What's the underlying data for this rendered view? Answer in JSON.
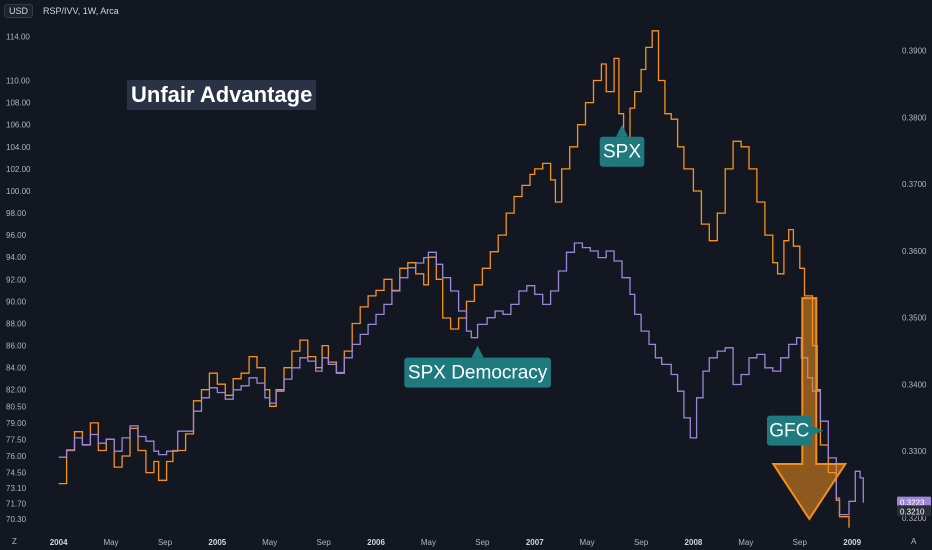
{
  "header": {
    "currency": "USD",
    "symbol": "RSP/IVV, 1W, Arca"
  },
  "title": "Unfair Advantage",
  "colors": {
    "background": "#131722",
    "spx": "#f7931a",
    "democracy": "#9d86d8",
    "badge": "#1f7a7e",
    "arrow": "#f28f1c"
  },
  "corner_left": "Z",
  "corner_right": "A",
  "chart_data": {
    "type": "line",
    "x_ticks": [
      {
        "label": "2004",
        "t": 2004.0,
        "year": true
      },
      {
        "label": "May",
        "t": 2004.33,
        "year": false
      },
      {
        "label": "Sep",
        "t": 2004.67,
        "year": false
      },
      {
        "label": "2005",
        "t": 2005.0,
        "year": true
      },
      {
        "label": "May",
        "t": 2005.33,
        "year": false
      },
      {
        "label": "Sep",
        "t": 2005.67,
        "year": false
      },
      {
        "label": "2006",
        "t": 2006.0,
        "year": true
      },
      {
        "label": "May",
        "t": 2006.33,
        "year": false
      },
      {
        "label": "Sep",
        "t": 2006.67,
        "year": false
      },
      {
        "label": "2007",
        "t": 2007.0,
        "year": true
      },
      {
        "label": "May",
        "t": 2007.33,
        "year": false
      },
      {
        "label": "Sep",
        "t": 2007.67,
        "year": false
      },
      {
        "label": "2008",
        "t": 2008.0,
        "year": true
      },
      {
        "label": "May",
        "t": 2008.33,
        "year": false
      },
      {
        "label": "Sep",
        "t": 2008.67,
        "year": false
      },
      {
        "label": "2009",
        "t": 2009.0,
        "year": true
      }
    ],
    "x_range": [
      2003.87,
      2009.27
    ],
    "left_axis": {
      "ticks": [
        "114.00",
        "110.00",
        "108.00",
        "106.00",
        "104.00",
        "102.00",
        "100.00",
        "98.00",
        "96.00",
        "94.00",
        "92.00",
        "90.00",
        "88.00",
        "86.00",
        "84.00",
        "82.00",
        "80.50",
        "79.00",
        "77.50",
        "76.00",
        "74.50",
        "73.10",
        "71.70",
        "70.30"
      ],
      "range": [
        69.3,
        115.3
      ]
    },
    "right_axis": {
      "ticks": [
        "0.3900",
        "0.3800",
        "0.3700",
        "0.3600",
        "0.3500",
        "0.3400",
        "0.3300",
        "0.3200"
      ],
      "range": [
        0.3182,
        0.3943
      ],
      "last_values": [
        {
          "label": "0.3223",
          "value": 0.3223,
          "series": "democracy"
        },
        {
          "label": "0.3210",
          "value": 0.321,
          "series": "neutral"
        }
      ]
    },
    "series": [
      {
        "name": "SPX",
        "axis": "left",
        "points": [
          [
            2004.0,
            73.5
          ],
          [
            2004.05,
            76.5
          ],
          [
            2004.1,
            78.2
          ],
          [
            2004.15,
            77.0
          ],
          [
            2004.2,
            79.0
          ],
          [
            2004.25,
            76.5
          ],
          [
            2004.3,
            77.5
          ],
          [
            2004.35,
            75.0
          ],
          [
            2004.4,
            76.0
          ],
          [
            2004.45,
            78.5
          ],
          [
            2004.5,
            76.5
          ],
          [
            2004.55,
            74.5
          ],
          [
            2004.6,
            75.5
          ],
          [
            2004.63,
            73.8
          ],
          [
            2004.68,
            75.5
          ],
          [
            2004.72,
            76.5
          ],
          [
            2004.8,
            78.0
          ],
          [
            2004.85,
            81.0
          ],
          [
            2004.9,
            82.0
          ],
          [
            2004.95,
            83.5
          ],
          [
            2005.0,
            82.5
          ],
          [
            2005.05,
            81.5
          ],
          [
            2005.1,
            83.0
          ],
          [
            2005.15,
            83.5
          ],
          [
            2005.2,
            85.0
          ],
          [
            2005.25,
            84.0
          ],
          [
            2005.3,
            82.0
          ],
          [
            2005.33,
            80.5
          ],
          [
            2005.37,
            82.0
          ],
          [
            2005.42,
            84.0
          ],
          [
            2005.47,
            85.5
          ],
          [
            2005.52,
            86.5
          ],
          [
            2005.57,
            85.0
          ],
          [
            2005.62,
            84.0
          ],
          [
            2005.66,
            86.0
          ],
          [
            2005.7,
            84.5
          ],
          [
            2005.75,
            83.5
          ],
          [
            2005.8,
            85.5
          ],
          [
            2005.85,
            88.0
          ],
          [
            2005.9,
            89.5
          ],
          [
            2005.95,
            90.5
          ],
          [
            2006.0,
            91.0
          ],
          [
            2006.05,
            92.0
          ],
          [
            2006.1,
            91.0
          ],
          [
            2006.15,
            93.0
          ],
          [
            2006.2,
            93.5
          ],
          [
            2006.25,
            92.5
          ],
          [
            2006.3,
            91.5
          ],
          [
            2006.33,
            94.0
          ],
          [
            2006.38,
            92.0
          ],
          [
            2006.42,
            88.5
          ],
          [
            2006.47,
            87.5
          ],
          [
            2006.52,
            88.5
          ],
          [
            2006.57,
            90.0
          ],
          [
            2006.62,
            91.5
          ],
          [
            2006.67,
            93.0
          ],
          [
            2006.72,
            94.5
          ],
          [
            2006.77,
            96.0
          ],
          [
            2006.82,
            98.0
          ],
          [
            2006.87,
            99.5
          ],
          [
            2006.92,
            100.5
          ],
          [
            2006.97,
            101.5
          ],
          [
            2007.0,
            102.0
          ],
          [
            2007.05,
            102.5
          ],
          [
            2007.1,
            101.0
          ],
          [
            2007.13,
            99.0
          ],
          [
            2007.17,
            102.0
          ],
          [
            2007.22,
            104.0
          ],
          [
            2007.27,
            106.0
          ],
          [
            2007.32,
            108.0
          ],
          [
            2007.37,
            110.0
          ],
          [
            2007.42,
            111.5
          ],
          [
            2007.45,
            109.0
          ],
          [
            2007.5,
            112.0
          ],
          [
            2007.53,
            107.0
          ],
          [
            2007.56,
            104.5
          ],
          [
            2007.6,
            107.5
          ],
          [
            2007.63,
            109.0
          ],
          [
            2007.67,
            111.0
          ],
          [
            2007.7,
            113.0
          ],
          [
            2007.74,
            114.5
          ],
          [
            2007.78,
            110.0
          ],
          [
            2007.82,
            107.0
          ],
          [
            2007.86,
            106.5
          ],
          [
            2007.9,
            104.0
          ],
          [
            2007.94,
            102.0
          ],
          [
            2008.0,
            100.0
          ],
          [
            2008.05,
            97.0
          ],
          [
            2008.1,
            95.5
          ],
          [
            2008.15,
            98.0
          ],
          [
            2008.2,
            102.0
          ],
          [
            2008.25,
            104.5
          ],
          [
            2008.3,
            104.0
          ],
          [
            2008.35,
            102.0
          ],
          [
            2008.4,
            99.0
          ],
          [
            2008.45,
            96.0
          ],
          [
            2008.5,
            93.5
          ],
          [
            2008.53,
            92.5
          ],
          [
            2008.57,
            95.5
          ],
          [
            2008.6,
            96.5
          ],
          [
            2008.63,
            95.0
          ],
          [
            2008.67,
            93.0
          ],
          [
            2008.7,
            90.5
          ],
          [
            2008.75,
            86.0
          ],
          [
            2008.78,
            82.0
          ],
          [
            2008.8,
            77.0
          ],
          [
            2008.85,
            74.5
          ],
          [
            2008.9,
            72.0
          ],
          [
            2008.92,
            70.5
          ],
          [
            2008.98,
            69.5
          ]
        ]
      },
      {
        "name": "SPX Democracy",
        "axis": "right",
        "points": [
          [
            2004.0,
            0.3291
          ],
          [
            2004.05,
            0.3302
          ],
          [
            2004.1,
            0.332
          ],
          [
            2004.15,
            0.331
          ],
          [
            2004.2,
            0.3325
          ],
          [
            2004.25,
            0.3312
          ],
          [
            2004.3,
            0.3318
          ],
          [
            2004.35,
            0.33
          ],
          [
            2004.4,
            0.332
          ],
          [
            2004.45,
            0.3338
          ],
          [
            2004.5,
            0.3322
          ],
          [
            2004.55,
            0.3315
          ],
          [
            2004.6,
            0.33
          ],
          [
            2004.63,
            0.3295
          ],
          [
            2004.68,
            0.33
          ],
          [
            2004.75,
            0.333
          ],
          [
            2004.85,
            0.336
          ],
          [
            2004.9,
            0.338
          ],
          [
            2004.95,
            0.3395
          ],
          [
            2005.0,
            0.3388
          ],
          [
            2005.05,
            0.3378
          ],
          [
            2005.1,
            0.3392
          ],
          [
            2005.15,
            0.3398
          ],
          [
            2005.2,
            0.341
          ],
          [
            2005.25,
            0.3402
          ],
          [
            2005.3,
            0.338
          ],
          [
            2005.33,
            0.3372
          ],
          [
            2005.37,
            0.339
          ],
          [
            2005.42,
            0.3408
          ],
          [
            2005.47,
            0.3425
          ],
          [
            2005.52,
            0.344
          ],
          [
            2005.57,
            0.3435
          ],
          [
            2005.62,
            0.342
          ],
          [
            2005.66,
            0.344
          ],
          [
            2005.7,
            0.343
          ],
          [
            2005.75,
            0.3418
          ],
          [
            2005.8,
            0.344
          ],
          [
            2005.85,
            0.346
          ],
          [
            2005.9,
            0.3475
          ],
          [
            2005.95,
            0.349
          ],
          [
            2006.0,
            0.3505
          ],
          [
            2006.05,
            0.352
          ],
          [
            2006.1,
            0.354
          ],
          [
            2006.15,
            0.356
          ],
          [
            2006.2,
            0.3575
          ],
          [
            2006.25,
            0.3582
          ],
          [
            2006.3,
            0.359
          ],
          [
            2006.33,
            0.3598
          ],
          [
            2006.38,
            0.358
          ],
          [
            2006.42,
            0.356
          ],
          [
            2006.47,
            0.354
          ],
          [
            2006.52,
            0.351
          ],
          [
            2006.57,
            0.348
          ],
          [
            2006.6,
            0.347
          ],
          [
            2006.64,
            0.349
          ],
          [
            2006.7,
            0.35
          ],
          [
            2006.75,
            0.351
          ],
          [
            2006.8,
            0.3505
          ],
          [
            2006.85,
            0.352
          ],
          [
            2006.9,
            0.354
          ],
          [
            2006.95,
            0.3548
          ],
          [
            2007.0,
            0.3535
          ],
          [
            2007.05,
            0.352
          ],
          [
            2007.1,
            0.354
          ],
          [
            2007.15,
            0.357
          ],
          [
            2007.2,
            0.3598
          ],
          [
            2007.25,
            0.3612
          ],
          [
            2007.3,
            0.3605
          ],
          [
            2007.35,
            0.36
          ],
          [
            2007.4,
            0.359
          ],
          [
            2007.45,
            0.36
          ],
          [
            2007.5,
            0.3585
          ],
          [
            2007.55,
            0.356
          ],
          [
            2007.6,
            0.3535
          ],
          [
            2007.63,
            0.3505
          ],
          [
            2007.67,
            0.348
          ],
          [
            2007.72,
            0.346
          ],
          [
            2007.76,
            0.344
          ],
          [
            2007.8,
            0.343
          ],
          [
            2007.86,
            0.3415
          ],
          [
            2007.9,
            0.339
          ],
          [
            2007.94,
            0.335
          ],
          [
            2007.98,
            0.332
          ],
          [
            2008.02,
            0.338
          ],
          [
            2008.06,
            0.342
          ],
          [
            2008.1,
            0.344
          ],
          [
            2008.15,
            0.345
          ],
          [
            2008.2,
            0.3455
          ],
          [
            2008.25,
            0.34
          ],
          [
            2008.3,
            0.3415
          ],
          [
            2008.35,
            0.344
          ],
          [
            2008.4,
            0.3445
          ],
          [
            2008.45,
            0.3425
          ],
          [
            2008.5,
            0.342
          ],
          [
            2008.55,
            0.344
          ],
          [
            2008.6,
            0.346
          ],
          [
            2008.65,
            0.347
          ],
          [
            2008.68,
            0.344
          ],
          [
            2008.72,
            0.341
          ],
          [
            2008.75,
            0.339
          ],
          [
            2008.8,
            0.3345
          ],
          [
            2008.85,
            0.329
          ],
          [
            2008.9,
            0.323
          ],
          [
            2008.92,
            0.3205
          ],
          [
            2008.98,
            0.3225
          ],
          [
            2009.02,
            0.327
          ],
          [
            2009.05,
            0.326
          ],
          [
            2009.07,
            0.3223
          ]
        ]
      }
    ],
    "annotations": [
      {
        "text": "SPX",
        "t": 2007.55,
        "v": 106.0,
        "axis": "left",
        "anchor": "below"
      },
      {
        "text": "SPX Democracy",
        "t": 2006.64,
        "v": 86.0,
        "axis": "left",
        "anchor": "below"
      },
      {
        "text": "GFC",
        "t": 2008.82,
        "v": 78.3,
        "axis": "left",
        "anchor": "right"
      }
    ]
  }
}
